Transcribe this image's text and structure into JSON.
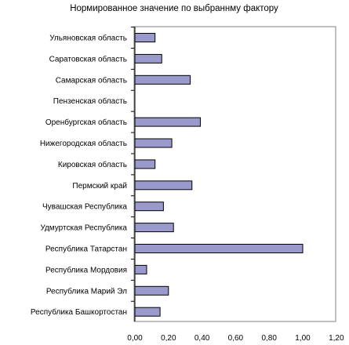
{
  "chart_data": {
    "type": "bar",
    "orientation": "horizontal",
    "title": "Нормированное значение по выбраннму фактору",
    "xlabel": "",
    "ylabel": "",
    "xlim": [
      0,
      1.2
    ],
    "xticks": [
      "0,00",
      "0,20",
      "0,40",
      "0,60",
      "0,80",
      "1,00",
      "1,20"
    ],
    "grid": false,
    "legend": "none",
    "bar_color": "#9999cc",
    "categories": [
      "Ульяновская область",
      "Саратовская область",
      "Самарская область",
      "Пензенская область",
      "Оренбургская область",
      "Нижегородская область",
      "Кировская область",
      "Пермский край",
      "Чувашская Республика",
      "Удмуртская Республика",
      "Республика Татарстан",
      "Республика Мордовия",
      "Республика Марий Эл",
      "Республика Башкортостан"
    ],
    "values": [
      0.12,
      0.16,
      0.33,
      0.0,
      0.39,
      0.22,
      0.12,
      0.34,
      0.17,
      0.23,
      1.0,
      0.07,
      0.2,
      0.15
    ]
  }
}
